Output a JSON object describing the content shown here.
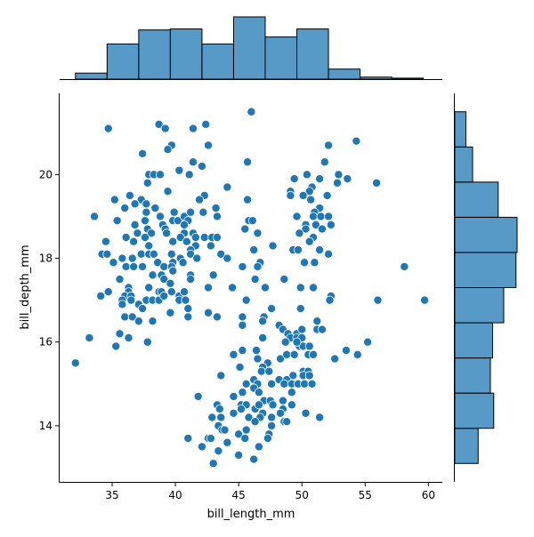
{
  "chart_data": {
    "type": "scatter",
    "xlabel": "bill_length_mm",
    "ylabel": "bill_depth_mm",
    "xlim": [
      30.85,
      61.1
    ],
    "ylim": [
      12.66,
      21.94
    ],
    "xticks": [
      35,
      40,
      45,
      50,
      55,
      60
    ],
    "yticks": [
      14,
      16,
      18,
      20
    ],
    "grid": false,
    "colors": {
      "marker": "#1f77b4",
      "marker_edge": "#ffffff",
      "hist_fill": "#1f77b4",
      "hist_edge": "#000000"
    },
    "points": [
      [
        34.7,
        21.1
      ],
      [
        38.7,
        21.2
      ],
      [
        39.2,
        21.1
      ],
      [
        41.4,
        21.1
      ],
      [
        42.4,
        21.2
      ],
      [
        46.0,
        21.5
      ],
      [
        39.7,
        20.7
      ],
      [
        39.4,
        20.6
      ],
      [
        42.6,
        20.7
      ],
      [
        37.4,
        20.5
      ],
      [
        41.4,
        20.3
      ],
      [
        42.1,
        20.2
      ],
      [
        40.3,
        20.1
      ],
      [
        41.1,
        20.0
      ],
      [
        37.9,
        20.0
      ],
      [
        38.3,
        20.0
      ],
      [
        38.8,
        20.0
      ],
      [
        37.8,
        19.8
      ],
      [
        39.4,
        19.6
      ],
      [
        44.1,
        19.7
      ],
      [
        42.3,
        19.5
      ],
      [
        41.9,
        19.4
      ],
      [
        35.2,
        19.4
      ],
      [
        36.4,
        19.5
      ],
      [
        37.3,
        19.4
      ],
      [
        36.8,
        19.3
      ],
      [
        37.7,
        19.3
      ],
      [
        36.0,
        19.2
      ],
      [
        38.4,
        19.2
      ],
      [
        37.7,
        19.1
      ],
      [
        33.6,
        19.0
      ],
      [
        35.4,
        18.9
      ],
      [
        36.8,
        18.8
      ],
      [
        37.6,
        18.9
      ],
      [
        38.8,
        19.0
      ],
      [
        39.9,
        19.1
      ],
      [
        39.0,
        18.8
      ],
      [
        39.8,
        18.9
      ],
      [
        40.2,
        18.9
      ],
      [
        40.7,
        19.0
      ],
      [
        41.2,
        19.1
      ],
      [
        41.0,
        18.9
      ],
      [
        40.7,
        18.8
      ],
      [
        42.2,
        19.1
      ],
      [
        43.2,
        19.2
      ],
      [
        43.3,
        19.0
      ],
      [
        45.7,
        19.4
      ],
      [
        45.7,
        20.3
      ],
      [
        37.8,
        18.7
      ],
      [
        39.2,
        18.7
      ],
      [
        37.0,
        18.6
      ],
      [
        38.1,
        18.6
      ],
      [
        39.3,
        18.6
      ],
      [
        40.7,
        18.6
      ],
      [
        41.4,
        18.6
      ],
      [
        45.5,
        18.7
      ],
      [
        45.8,
        18.9
      ],
      [
        34.5,
        18.4
      ],
      [
        36.1,
        18.5
      ],
      [
        36.7,
        18.4
      ],
      [
        37.6,
        18.5
      ],
      [
        39.8,
        18.4
      ],
      [
        40.4,
        18.5
      ],
      [
        40.9,
        18.4
      ],
      [
        41.6,
        18.5
      ],
      [
        42.3,
        18.5
      ],
      [
        42.9,
        18.5
      ],
      [
        43.3,
        18.5
      ],
      [
        37.9,
        18.3
      ],
      [
        41.6,
        18.3
      ],
      [
        42.8,
        18.3
      ],
      [
        41.2,
        18.2
      ],
      [
        34.2,
        18.1
      ],
      [
        34.6,
        18.1
      ],
      [
        37.3,
        18.1
      ],
      [
        37.9,
        18.1
      ],
      [
        38.3,
        18.1
      ],
      [
        39.7,
        18.1
      ],
      [
        41.2,
        18.1
      ],
      [
        43.6,
        18.1
      ],
      [
        35.8,
        18.0
      ],
      [
        36.6,
        18.0
      ],
      [
        38.6,
        17.9
      ],
      [
        39.8,
        17.9
      ],
      [
        40.4,
        18.0
      ],
      [
        40.6,
        17.9
      ],
      [
        41.7,
        18.0
      ],
      [
        44.1,
        18.0
      ],
      [
        35.1,
        17.9
      ],
      [
        36.1,
        17.8
      ],
      [
        36.7,
        17.8
      ],
      [
        37.4,
        17.8
      ],
      [
        39.1,
        17.8
      ],
      [
        39.7,
        17.8
      ],
      [
        45.3,
        17.8
      ],
      [
        39.8,
        17.7
      ],
      [
        38.2,
        17.6
      ],
      [
        38.9,
        17.6
      ],
      [
        41.2,
        17.6
      ],
      [
        43.0,
        17.6
      ],
      [
        35.6,
        17.5
      ],
      [
        39.1,
        17.5
      ],
      [
        41.2,
        17.5
      ],
      [
        39.6,
        17.4
      ],
      [
        52.1,
        20.7
      ],
      [
        54.3,
        20.8
      ],
      [
        51.8,
        20.3
      ],
      [
        50.4,
        20.0
      ],
      [
        49.4,
        19.9
      ],
      [
        51.4,
        19.9
      ],
      [
        52.9,
        20.0
      ],
      [
        52.8,
        19.8
      ],
      [
        53.6,
        19.9
      ],
      [
        55.9,
        19.8
      ],
      [
        49.1,
        19.6
      ],
      [
        49.1,
        19.5
      ],
      [
        50.8,
        19.7
      ],
      [
        50.6,
        19.6
      ],
      [
        50.1,
        19.5
      ],
      [
        50.7,
        19.4
      ],
      [
        52.0,
        19.5
      ],
      [
        51.4,
        19.2
      ],
      [
        51.0,
        19.1
      ],
      [
        49.6,
        19.0
      ],
      [
        50.9,
        19.0
      ],
      [
        51.5,
        19.0
      ],
      [
        52.1,
        19.0
      ],
      [
        50.3,
        18.8
      ],
      [
        51.1,
        18.8
      ],
      [
        52.3,
        18.8
      ],
      [
        50.3,
        18.7
      ],
      [
        51.6,
        18.7
      ],
      [
        49.8,
        18.6
      ],
      [
        46.5,
        18.6
      ],
      [
        50.9,
        18.5
      ],
      [
        50.6,
        18.4
      ],
      [
        46.1,
        18.9
      ],
      [
        47.7,
        18.3
      ],
      [
        46.2,
        18.2
      ],
      [
        49.3,
        18.2
      ],
      [
        49.7,
        18.2
      ],
      [
        51.4,
        18.2
      ],
      [
        52.1,
        18.1
      ],
      [
        50.2,
        17.9
      ],
      [
        51.0,
        17.9
      ],
      [
        46.7,
        17.9
      ],
      [
        46.5,
        17.8
      ],
      [
        58.1,
        17.8
      ],
      [
        46.3,
        17.5
      ],
      [
        48.6,
        17.5
      ],
      [
        49.9,
        17.3
      ],
      [
        50.9,
        17.3
      ],
      [
        47.1,
        17.3
      ],
      [
        34.1,
        17.1
      ],
      [
        34.7,
        17.2
      ],
      [
        36.3,
        17.3
      ],
      [
        36.3,
        17.2
      ],
      [
        36.0,
        17.1
      ],
      [
        36.5,
        17.1
      ],
      [
        35.8,
        17.0
      ],
      [
        35.8,
        16.9
      ],
      [
        36.5,
        17.0
      ],
      [
        37.1,
        16.9
      ],
      [
        37.4,
        16.8
      ],
      [
        37.7,
        17.0
      ],
      [
        38.2,
        17.0
      ],
      [
        38.7,
        17.0
      ],
      [
        37.9,
        17.3
      ],
      [
        38.7,
        17.2
      ],
      [
        38.9,
        17.2
      ],
      [
        39.1,
        17.1
      ],
      [
        39.7,
        17.2
      ],
      [
        40.3,
        17.1
      ],
      [
        40.3,
        17.0
      ],
      [
        40.7,
        17.2
      ],
      [
        40.8,
        17.0
      ],
      [
        41.0,
        16.8
      ],
      [
        41.0,
        16.6
      ],
      [
        39.6,
        16.7
      ],
      [
        36.0,
        16.6
      ],
      [
        36.6,
        16.6
      ],
      [
        37.1,
        16.5
      ],
      [
        38.2,
        16.5
      ],
      [
        42.6,
        17.3
      ],
      [
        42.6,
        16.7
      ],
      [
        43.3,
        16.6
      ],
      [
        44.5,
        17.3
      ],
      [
        45.3,
        16.6
      ],
      [
        45.3,
        16.4
      ],
      [
        45.6,
        17.0
      ],
      [
        35.6,
        16.2
      ],
      [
        36.3,
        16.1
      ],
      [
        35.3,
        15.9
      ],
      [
        37.8,
        16.0
      ],
      [
        33.2,
        16.1
      ],
      [
        32.1,
        15.5
      ],
      [
        45.3,
        15.8
      ],
      [
        44.6,
        15.7
      ],
      [
        45.1,
        15.4
      ],
      [
        43.6,
        15.2
      ],
      [
        45.6,
        15.0
      ],
      [
        45.3,
        14.8
      ],
      [
        44.6,
        14.7
      ],
      [
        41.8,
        14.7
      ],
      [
        43.3,
        14.5
      ],
      [
        43.5,
        14.4
      ],
      [
        45.2,
        14.5
      ],
      [
        45.6,
        14.5
      ],
      [
        45.2,
        14.4
      ],
      [
        44.6,
        14.3
      ],
      [
        42.9,
        14.2
      ],
      [
        43.6,
        14.2
      ],
      [
        45.8,
        14.2
      ],
      [
        43.4,
        14.0
      ],
      [
        43.7,
        13.9
      ],
      [
        43.9,
        13.9
      ],
      [
        45.6,
        13.9
      ],
      [
        41.0,
        13.7
      ],
      [
        42.6,
        13.7
      ],
      [
        42.8,
        13.7
      ],
      [
        45.0,
        13.8
      ],
      [
        45.5,
        13.7
      ],
      [
        44.1,
        13.6
      ],
      [
        42.1,
        13.5
      ],
      [
        43.4,
        13.4
      ],
      [
        45.0,
        13.3
      ],
      [
        43.0,
        13.1
      ],
      [
        52.3,
        17.1
      ],
      [
        52.2,
        17.0
      ],
      [
        56.0,
        17.0
      ],
      [
        59.7,
        17.0
      ],
      [
        47.6,
        16.8
      ],
      [
        49.9,
        16.8
      ],
      [
        47.0,
        16.6
      ],
      [
        46.9,
        16.5
      ],
      [
        51.2,
        16.5
      ],
      [
        48.2,
        16.4
      ],
      [
        48.5,
        16.3
      ],
      [
        48.9,
        16.2
      ],
      [
        49.6,
        16.2
      ],
      [
        50.0,
        16.3
      ],
      [
        51.2,
        16.3
      ],
      [
        51.6,
        16.3
      ],
      [
        46.9,
        16.1
      ],
      [
        49.1,
        16.1
      ],
      [
        49.6,
        16.1
      ],
      [
        50.0,
        16.1
      ],
      [
        48.7,
        16.0
      ],
      [
        49.8,
        15.9
      ],
      [
        50.1,
        15.9
      ],
      [
        50.6,
        15.9
      ],
      [
        49.6,
        16.0
      ],
      [
        55.2,
        16.0
      ],
      [
        46.4,
        15.8
      ],
      [
        53.5,
        15.8
      ],
      [
        54.4,
        15.7
      ],
      [
        52.6,
        15.6
      ],
      [
        46.5,
        15.6
      ],
      [
        48.3,
        15.6
      ],
      [
        48.8,
        15.7
      ],
      [
        49.4,
        15.7
      ],
      [
        50.5,
        15.7
      ],
      [
        50.9,
        15.7
      ],
      [
        47.3,
        15.5
      ],
      [
        46.9,
        15.4
      ],
      [
        46.8,
        15.3
      ],
      [
        47.4,
        15.3
      ],
      [
        50.1,
        15.3
      ],
      [
        50.5,
        15.3
      ],
      [
        50.1,
        15.2
      ],
      [
        50.6,
        15.2
      ],
      [
        49.3,
        15.2
      ],
      [
        46.2,
        15.1
      ],
      [
        48.2,
        15.1
      ],
      [
        48.8,
        15.1
      ],
      [
        46.5,
        15.0
      ],
      [
        47.6,
        15.0
      ],
      [
        48.6,
        15.0
      ],
      [
        49.2,
        15.0
      ],
      [
        49.7,
        15.0
      ],
      [
        50.2,
        15.0
      ],
      [
        50.8,
        15.0
      ],
      [
        46.2,
        14.9
      ],
      [
        46.6,
        14.8
      ],
      [
        49.2,
        14.8
      ],
      [
        47.0,
        14.6
      ],
      [
        47.5,
        14.6
      ],
      [
        48.5,
        14.6
      ],
      [
        46.3,
        14.4
      ],
      [
        46.6,
        14.5
      ],
      [
        47.7,
        14.5
      ],
      [
        48.5,
        14.4
      ],
      [
        49.2,
        14.5
      ],
      [
        46.9,
        14.3
      ],
      [
        48.3,
        14.3
      ],
      [
        50.3,
        14.3
      ],
      [
        51.4,
        14.2
      ],
      [
        46.7,
        14.2
      ],
      [
        47.6,
        14.2
      ],
      [
        46.3,
        14.1
      ],
      [
        48.6,
        14.1
      ],
      [
        48.8,
        14.1
      ],
      [
        47.6,
        14.0
      ],
      [
        47.4,
        13.8
      ],
      [
        47.3,
        13.7
      ],
      [
        46.6,
        13.5
      ],
      [
        46.2,
        13.2
      ]
    ],
    "x_hist": {
      "bin_start": 32.1,
      "bin_width": 2.5,
      "counts": [
        6,
        35,
        49,
        50,
        35,
        62,
        42,
        50,
        10,
        2,
        1
      ]
    },
    "y_hist": {
      "bin_start": 13.1,
      "bin_width": 0.84,
      "counts": [
        21,
        35,
        32,
        34,
        44,
        55,
        56,
        39,
        16,
        10
      ]
    }
  }
}
